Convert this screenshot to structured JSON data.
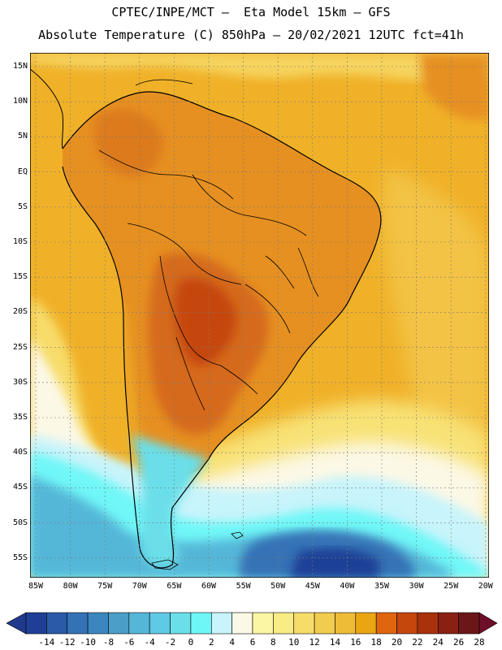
{
  "title": {
    "line1": "CPTEC/INPE/MCT –  Eta Model 15km – GFS",
    "line2": "Absolute Temperature (C) 850hPa – 20/02/2021 12UTC fct=41h"
  },
  "lat_labels": [
    "15N",
    "10N",
    "5N",
    "EQ",
    "5S",
    "10S",
    "15S",
    "20S",
    "25S",
    "30S",
    "35S",
    "40S",
    "45S",
    "50S",
    "55S"
  ],
  "lon_labels": [
    "85W",
    "80W",
    "75W",
    "70W",
    "65W",
    "60W",
    "55W",
    "50W",
    "45W",
    "40W",
    "35W",
    "30W",
    "25W",
    "20W"
  ],
  "colorbar": {
    "labels": [
      "-14",
      "-12",
      "-10",
      "-8",
      "-6",
      "-4",
      "-2",
      "0",
      "2",
      "4",
      "6",
      "8",
      "10",
      "12",
      "14",
      "16",
      "18",
      "20",
      "22",
      "24",
      "26",
      "28"
    ],
    "colors": [
      "#1f3f96",
      "#2a5aa8",
      "#3472b6",
      "#3c86c0",
      "#4a9ec8",
      "#55b7d8",
      "#5ecae3",
      "#6adfe9",
      "#6ff7f7",
      "#c8f4fb",
      "#fcf8e6",
      "#fbf6a4",
      "#f9ec84",
      "#f6dd6a",
      "#f2cc4f",
      "#efbc38",
      "#eaa513",
      "#e0650f",
      "#c5470c",
      "#a8320c",
      "#8a2012",
      "#6b1717"
    ],
    "under_color": "#1f3a8c",
    "over_color": "#6e0f2a"
  },
  "colors": {
    "ocean_warm": "#f0b128",
    "land_warm": "#e69021",
    "land_hot": "#c8571a",
    "cold_deep": "#2f69b2"
  }
}
